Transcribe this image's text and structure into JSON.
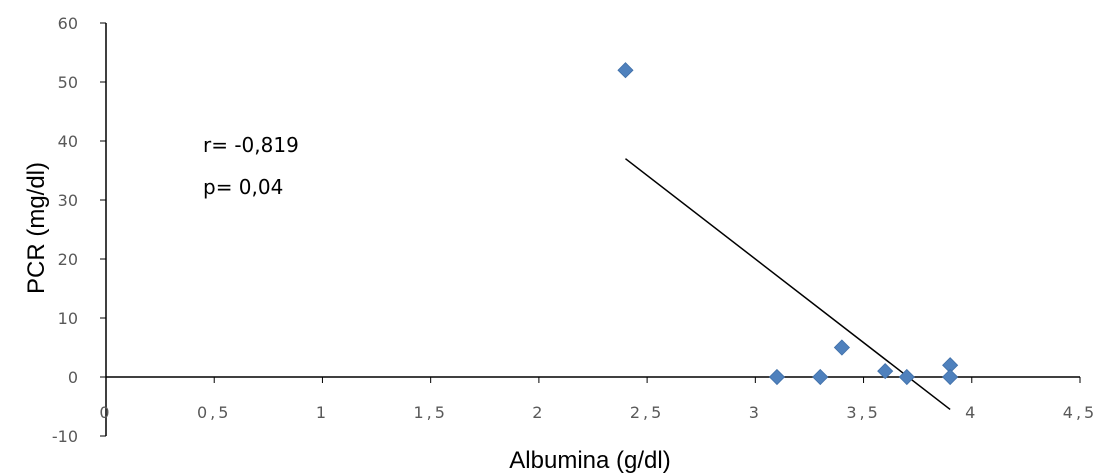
{
  "chart_data": {
    "type": "scatter",
    "xlabel": "Albumina (g/dl)",
    "ylabel": "PCR (mg/dl)",
    "xlim": [
      0,
      4.5
    ],
    "ylim": [
      -10,
      60
    ],
    "x_ticks": [
      "0",
      "0,5",
      "1",
      "1,5",
      "2",
      "2,5",
      "3",
      "3,5",
      "4",
      "4,5"
    ],
    "y_ticks": [
      "60",
      "50",
      "40",
      "30",
      "20",
      "10",
      "0",
      "-10"
    ],
    "series": [
      {
        "points": [
          {
            "x": 2.4,
            "y": 52
          },
          {
            "x": 3.1,
            "y": 0
          },
          {
            "x": 3.3,
            "y": 0
          },
          {
            "x": 3.4,
            "y": 5
          },
          {
            "x": 3.6,
            "y": 1
          },
          {
            "x": 3.7,
            "y": 0
          },
          {
            "x": 3.9,
            "y": 2
          },
          {
            "x": 3.9,
            "y": 0
          }
        ]
      }
    ],
    "trendline": {
      "x": [
        2.4,
        3.9
      ],
      "y": [
        37,
        -5.5
      ]
    },
    "annotations": [
      "r= -0,819",
      "p= 0,04"
    ],
    "grid": false,
    "colors": {
      "marker": "#4F81BD",
      "line": "#000000",
      "axis": "#000000"
    }
  }
}
